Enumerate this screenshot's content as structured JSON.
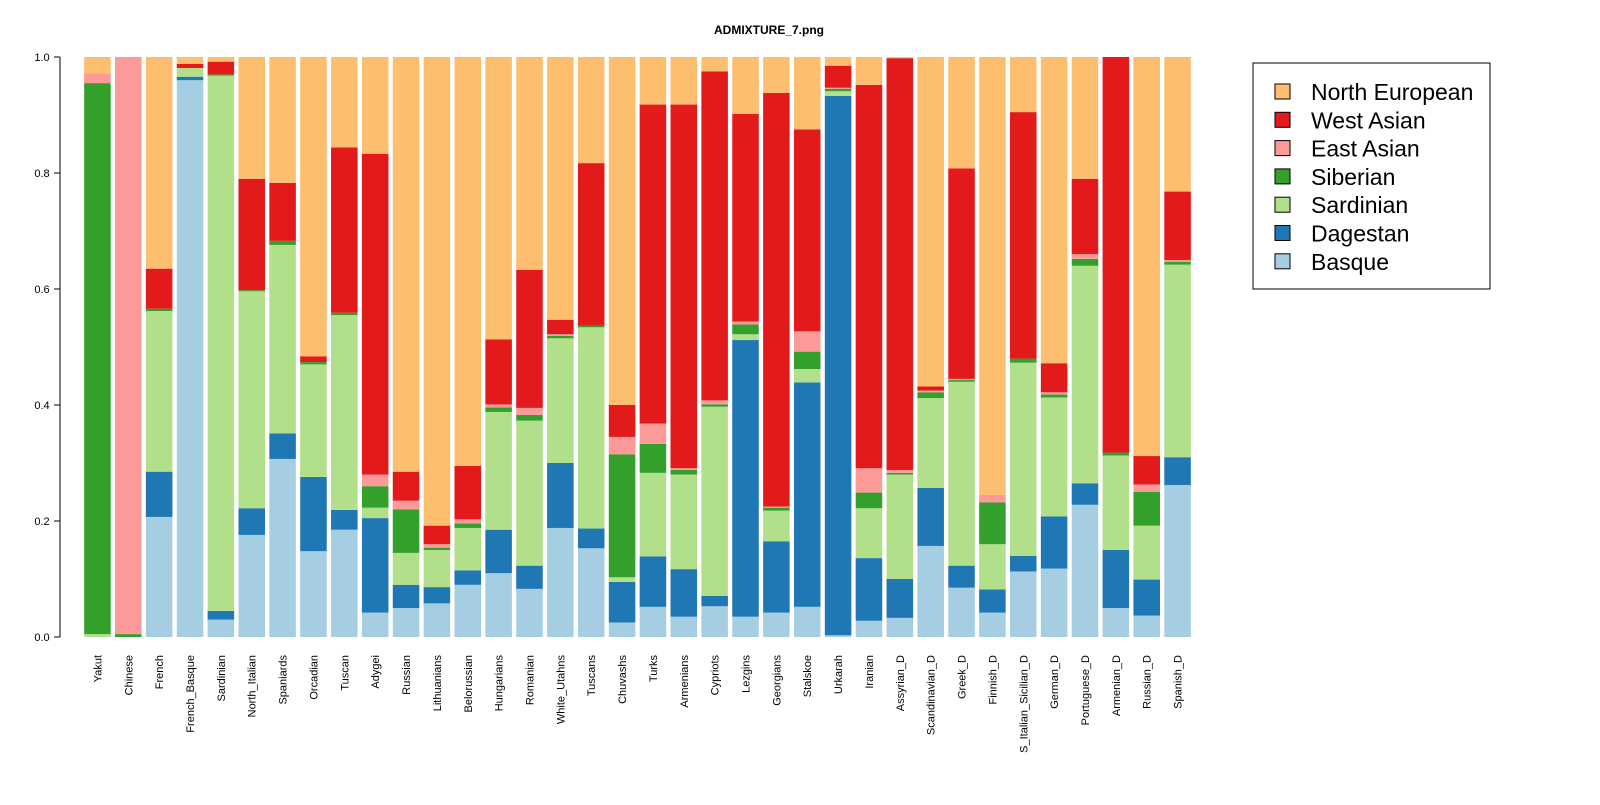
{
  "chart_data": {
    "type": "stacked_bar",
    "title": "ADMIXTURE_7.png",
    "categories": [
      "Yakut",
      "Chinese",
      "French",
      "French_Basque",
      "Sardinian",
      "North_Italian",
      "Spaniards",
      "Orcadian",
      "Tuscan",
      "Adygei",
      "Russian",
      "Lithuanians",
      "Belorussian",
      "Hungarians",
      "Romanian",
      "White_Utahns",
      "Tuscans",
      "Chuvashs",
      "Turks",
      "Armenians",
      "Cypriots",
      "Lezgins",
      "Georgians",
      "Stalskoe",
      "Urkarah",
      "Iranian",
      "Assyrian_D",
      "Scandinavian_D",
      "Greek_D",
      "Finnish_D",
      "S_Italian_Sicilian_D",
      "German_D",
      "Portuguese_D",
      "Armenian_D",
      "Russian_D",
      "Spanish_D"
    ],
    "series": [
      {
        "name": "North European",
        "color": "#FDBF6F",
        "values": [
          0.028,
          0,
          0.365,
          0.012,
          0.008,
          0.21,
          0.217,
          0.516,
          0.156,
          0.167,
          0.715,
          0.808,
          0.705,
          0.487,
          0.367,
          0.453,
          0.183,
          0.6,
          0.082,
          0.082,
          0.025,
          0.098,
          0.062,
          0.125,
          0.015,
          0.048,
          0.002,
          0.568,
          0.192,
          0.755,
          0.095,
          0.528,
          0.21,
          0,
          0.688,
          0.232
        ]
      },
      {
        "name": "West Asian",
        "color": "#E31A1C",
        "values": [
          0,
          0,
          0.069,
          0.007,
          0.022,
          0.192,
          0.1,
          0.01,
          0.285,
          0.553,
          0.05,
          0.032,
          0.092,
          0.112,
          0.238,
          0.025,
          0.28,
          0.055,
          0.55,
          0.627,
          0.567,
          0.358,
          0.713,
          0.348,
          0.038,
          0.661,
          0.71,
          0.007,
          0.363,
          0,
          0.425,
          0.05,
          0.13,
          0.682,
          0.049,
          0.118
        ]
      },
      {
        "name": "East Asian",
        "color": "#FB9A99",
        "values": [
          0.017,
          0.995,
          0,
          0,
          0,
          0,
          0,
          0,
          0,
          0.02,
          0.015,
          0.006,
          0.007,
          0.005,
          0.012,
          0.003,
          0,
          0.03,
          0.035,
          0.003,
          0.007,
          0.005,
          0.002,
          0.035,
          0.002,
          0.042,
          0.005,
          0.003,
          0.002,
          0.013,
          0,
          0.004,
          0.008,
          0,
          0.013,
          0.003
        ]
      },
      {
        "name": "Siberian",
        "color": "#33A02C",
        "values": [
          0.95,
          0.005,
          0.004,
          0,
          0.002,
          0.002,
          0.007,
          0.004,
          0.004,
          0.037,
          0.075,
          0.004,
          0.008,
          0.008,
          0.01,
          0.004,
          0.003,
          0.212,
          0.05,
          0.008,
          0.004,
          0.017,
          0.005,
          0.03,
          0.004,
          0.027,
          0.003,
          0.01,
          0.003,
          0.072,
          0.007,
          0.005,
          0.012,
          0.005,
          0.058,
          0.005
        ]
      },
      {
        "name": "Sardinian",
        "color": "#B2DF8A",
        "values": [
          0.005,
          0,
          0.277,
          0.015,
          0.923,
          0.374,
          0.325,
          0.194,
          0.336,
          0.018,
          0.055,
          0.064,
          0.073,
          0.203,
          0.25,
          0.215,
          0.347,
          0.008,
          0.144,
          0.163,
          0.326,
          0.01,
          0.053,
          0.023,
          0.008,
          0.086,
          0.18,
          0.155,
          0.317,
          0.078,
          0.333,
          0.205,
          0.375,
          0.163,
          0.093,
          0.332
        ]
      },
      {
        "name": "Dagestan",
        "color": "#1F78B4",
        "values": [
          0,
          0,
          0.078,
          0.006,
          0.015,
          0.046,
          0.044,
          0.128,
          0.034,
          0.163,
          0.04,
          0.028,
          0.025,
          0.075,
          0.04,
          0.112,
          0.034,
          0.07,
          0.087,
          0.082,
          0.018,
          0.477,
          0.123,
          0.387,
          0.93,
          0.108,
          0.067,
          0.1,
          0.038,
          0.04,
          0.027,
          0.09,
          0.037,
          0.1,
          0.062,
          0.048
        ]
      },
      {
        "name": "Basque",
        "color": "#A6CEE3",
        "values": [
          0,
          0,
          0.207,
          0.96,
          0.03,
          0.176,
          0.307,
          0.148,
          0.185,
          0.042,
          0.05,
          0.058,
          0.09,
          0.11,
          0.083,
          0.188,
          0.153,
          0.025,
          0.052,
          0.035,
          0.053,
          0.035,
          0.042,
          0.052,
          0.003,
          0.028,
          0.033,
          0.157,
          0.085,
          0.042,
          0.113,
          0.118,
          0.228,
          0.05,
          0.037,
          0.262
        ]
      }
    ],
    "ylim": [
      0,
      1
    ],
    "yticks": [
      {
        "value": 0,
        "label": "0.0"
      },
      0.2,
      0.4,
      0.6,
      0.8,
      {
        "value": 1,
        "label": "1.0"
      }
    ]
  }
}
